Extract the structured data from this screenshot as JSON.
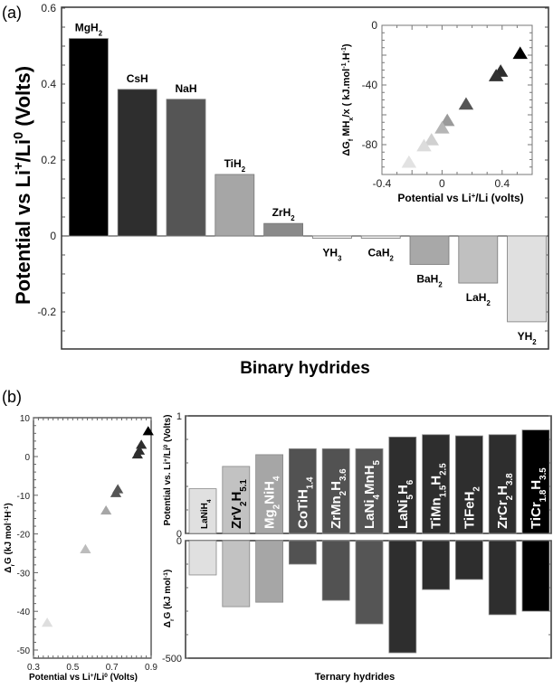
{
  "panel_a": {
    "label": "(a)",
    "xlabel": "Binary hydrides"
  },
  "panel_b": {
    "label": "(b)",
    "xlabel": "Ternary hydrides"
  },
  "chart_data": [
    {
      "id": "a-main",
      "type": "bar",
      "title": "",
      "xlabel": "Binary hydrides",
      "ylabel": "Potential vs Li+/Li0 (Volts)",
      "ylabel_parts": [
        "Potential  vs  Li",
        "+",
        "/Li",
        "0",
        " (Volts)"
      ],
      "ylim": [
        -0.3,
        0.6
      ],
      "yticks": [
        -0.2,
        0,
        0.2,
        0.4,
        0.6
      ],
      "ytick_labels": [
        "-0.2",
        "0",
        "0.2",
        "0.4",
        "0.6"
      ],
      "categories": [
        {
          "base": "MgH",
          "sub": "2"
        },
        {
          "base": "CsH",
          "sub": ""
        },
        {
          "base": "NaH",
          "sub": ""
        },
        {
          "base": "TiH",
          "sub": "2"
        },
        {
          "base": "ZrH",
          "sub": "2"
        },
        {
          "base": "YH",
          "sub": "3"
        },
        {
          "base": "CaH",
          "sub": "2"
        },
        {
          "base": "BaH",
          "sub": "2"
        },
        {
          "base": "LaH",
          "sub": "2"
        },
        {
          "base": "YH",
          "sub": "2"
        }
      ],
      "values": [
        0.52,
        0.386,
        0.36,
        0.162,
        0.033,
        -0.006,
        -0.006,
        -0.075,
        -0.124,
        -0.226
      ],
      "colors": [
        "#000000",
        "#2e2e2e",
        "#555555",
        "#a6a6a6",
        "#8a8a8a",
        "#f2f2f2",
        "#f2f2f2",
        "#a8a8a8",
        "#c0c0c0",
        "#e0e0e0"
      ]
    },
    {
      "id": "a-inset",
      "type": "scatter",
      "xlabel_parts": [
        "Potential vs  Li",
        "+",
        "/Li (volts)"
      ],
      "ylabel_parts": [
        "ΔG",
        "f",
        " MH",
        "x",
        "/x  ( kJ.mol",
        "-1",
        ".H",
        "-1",
        ")"
      ],
      "xlim": [
        -0.4,
        0.6
      ],
      "ylim": [
        -100,
        0
      ],
      "xticks": [
        -0.4,
        0,
        0.4
      ],
      "xtick_labels": [
        "-0.4",
        "0",
        "0.4"
      ],
      "yticks": [
        0,
        -40,
        -80
      ],
      "ytick_labels": [
        "0",
        "-40",
        "-80"
      ],
      "x": [
        0.52,
        0.39,
        0.36,
        0.16,
        0.035,
        0.0,
        -0.07,
        -0.12,
        -0.22
      ],
      "y": [
        -19,
        -31,
        -34,
        -53,
        -64,
        -69,
        -77,
        -81,
        -92
      ],
      "colors": [
        "#000000",
        "#2e2e2e",
        "#333333",
        "#555555",
        "#9a9a9a",
        "#b5b5b5",
        "#d0d0d0",
        "#dcdcdc",
        "#e2e2e2"
      ]
    },
    {
      "id": "b-scatter",
      "type": "scatter",
      "xlabel_parts": [
        "Potential vs  Li",
        "+",
        "/Li",
        "0",
        " (Volts)"
      ],
      "ylabel_parts": [
        "Δ",
        "r",
        "G (kJ mol",
        "-1",
        "H",
        "-1",
        ")"
      ],
      "xlim": [
        0.3,
        0.9
      ],
      "ylim": [
        -52,
        10
      ],
      "xticks": [
        0.3,
        0.5,
        0.7,
        0.9
      ],
      "xtick_labels": [
        "0.3",
        "0.5",
        "0.7",
        "0.9"
      ],
      "yticks": [
        10,
        0,
        -10,
        -20,
        -30,
        -40,
        -50
      ],
      "ytick_labels": [
        "10",
        "0",
        "-10",
        "-20",
        "-30",
        "-40",
        "-50"
      ],
      "x": [
        0.885,
        0.85,
        0.84,
        0.83,
        0.73,
        0.72,
        0.67,
        0.565,
        0.37
      ],
      "y": [
        6.5,
        3.0,
        1.5,
        0.5,
        -8.5,
        -9.5,
        -14,
        -24,
        -43
      ],
      "colors": [
        "#000000",
        "#2e2e2e",
        "#2e2e2e",
        "#2e2e2e",
        "#555555",
        "#555555",
        "#a6a6a6",
        "#bcbcbc",
        "#dedede"
      ]
    },
    {
      "id": "b-potential",
      "type": "bar",
      "ylabel_parts": [
        "Potential vs. Li",
        "+",
        "/Li",
        "0",
        " (Volts)"
      ],
      "ylim": [
        0,
        1
      ],
      "yticks": [
        0,
        1
      ],
      "ytick_labels": [
        "0",
        "1"
      ],
      "categories": [
        {
          "parts": [
            [
              "LaNiH",
              ""
            ],
            [
              "4",
              "sub"
            ]
          ]
        },
        {
          "parts": [
            [
              "ZrV",
              ""
            ],
            [
              "2",
              "sub"
            ],
            [
              "H",
              ""
            ],
            [
              "5.1",
              "sub"
            ]
          ]
        },
        {
          "parts": [
            [
              "Mg",
              ""
            ],
            [
              "2",
              "sub"
            ],
            [
              "NiH",
              ""
            ],
            [
              "4",
              "sub"
            ]
          ]
        },
        {
          "parts": [
            [
              "CoTiH",
              ""
            ],
            [
              "1.4",
              "sub"
            ]
          ]
        },
        {
          "parts": [
            [
              "ZrMn",
              ""
            ],
            [
              "2",
              "sub"
            ],
            [
              "H",
              ""
            ],
            [
              "3.6",
              "sub"
            ]
          ]
        },
        {
          "parts": [
            [
              "LaNi",
              ""
            ],
            [
              "4",
              "sub"
            ],
            [
              "MnH",
              ""
            ],
            [
              "5",
              "sub"
            ]
          ]
        },
        {
          "parts": [
            [
              "LaNi",
              ""
            ],
            [
              "5",
              "sub"
            ],
            [
              "H",
              ""
            ],
            [
              "6",
              "sub"
            ]
          ]
        },
        {
          "parts": [
            [
              "TiMn",
              ""
            ],
            [
              "1.5",
              "sub"
            ],
            [
              "H",
              ""
            ],
            [
              "2.5",
              "sub"
            ]
          ]
        },
        {
          "parts": [
            [
              "TiFeH",
              ""
            ],
            [
              "2",
              "sub"
            ]
          ]
        },
        {
          "parts": [
            [
              "ZrCr",
              ""
            ],
            [
              "2",
              "sub"
            ],
            [
              "H",
              ""
            ],
            [
              "3.8",
              "sub"
            ]
          ]
        },
        {
          "parts": [
            [
              "TiCr",
              ""
            ],
            [
              "1.8",
              "sub"
            ],
            [
              "H",
              ""
            ],
            [
              "3.5",
              "sub"
            ]
          ]
        }
      ],
      "values": [
        0.38,
        0.57,
        0.67,
        0.72,
        0.72,
        0.72,
        0.82,
        0.84,
        0.83,
        0.84,
        0.88
      ],
      "colors": [
        "#e0e0e0",
        "#c2c2c2",
        "#a6a6a6",
        "#525252",
        "#525252",
        "#555555",
        "#2e2e2e",
        "#2e2e2e",
        "#2e2e2e",
        "#2e2e2e",
        "#000000"
      ],
      "label_colors": [
        "#000000",
        "#000000",
        "#ffffff",
        "#ffffff",
        "#ffffff",
        "#ffffff",
        "#ffffff",
        "#ffffff",
        "#ffffff",
        "#ffffff",
        "#ffffff"
      ]
    },
    {
      "id": "b-gibbs",
      "type": "bar",
      "xlabel": "Ternary hydrides",
      "ylabel_parts": [
        "Δ",
        "r",
        "G (kJ mol",
        "-1",
        ")"
      ],
      "ylim": [
        -500,
        0
      ],
      "yticks": [
        0,
        -500
      ],
      "ytick_labels": [
        "0",
        "-500"
      ],
      "categories": [
        "LaNiH4",
        "ZrV2H5.1",
        "Mg2NiH4",
        "CoTiH1.4",
        "ZrMn2H3.6",
        "LaNi4MnH5",
        "LaNi5H6",
        "TiMn1.5H2.5",
        "TiFeH2",
        "ZrCr2H3.8",
        "TiCr1.8H3.5"
      ],
      "values": [
        -146,
        -281,
        -262,
        -100,
        -254,
        -354,
        -477,
        -208,
        -165,
        -315,
        -300
      ],
      "colors": [
        "#e0e0e0",
        "#c2c2c2",
        "#a6a6a6",
        "#525252",
        "#525252",
        "#555555",
        "#2e2e2e",
        "#2e2e2e",
        "#2e2e2e",
        "#2e2e2e",
        "#000000"
      ]
    }
  ]
}
